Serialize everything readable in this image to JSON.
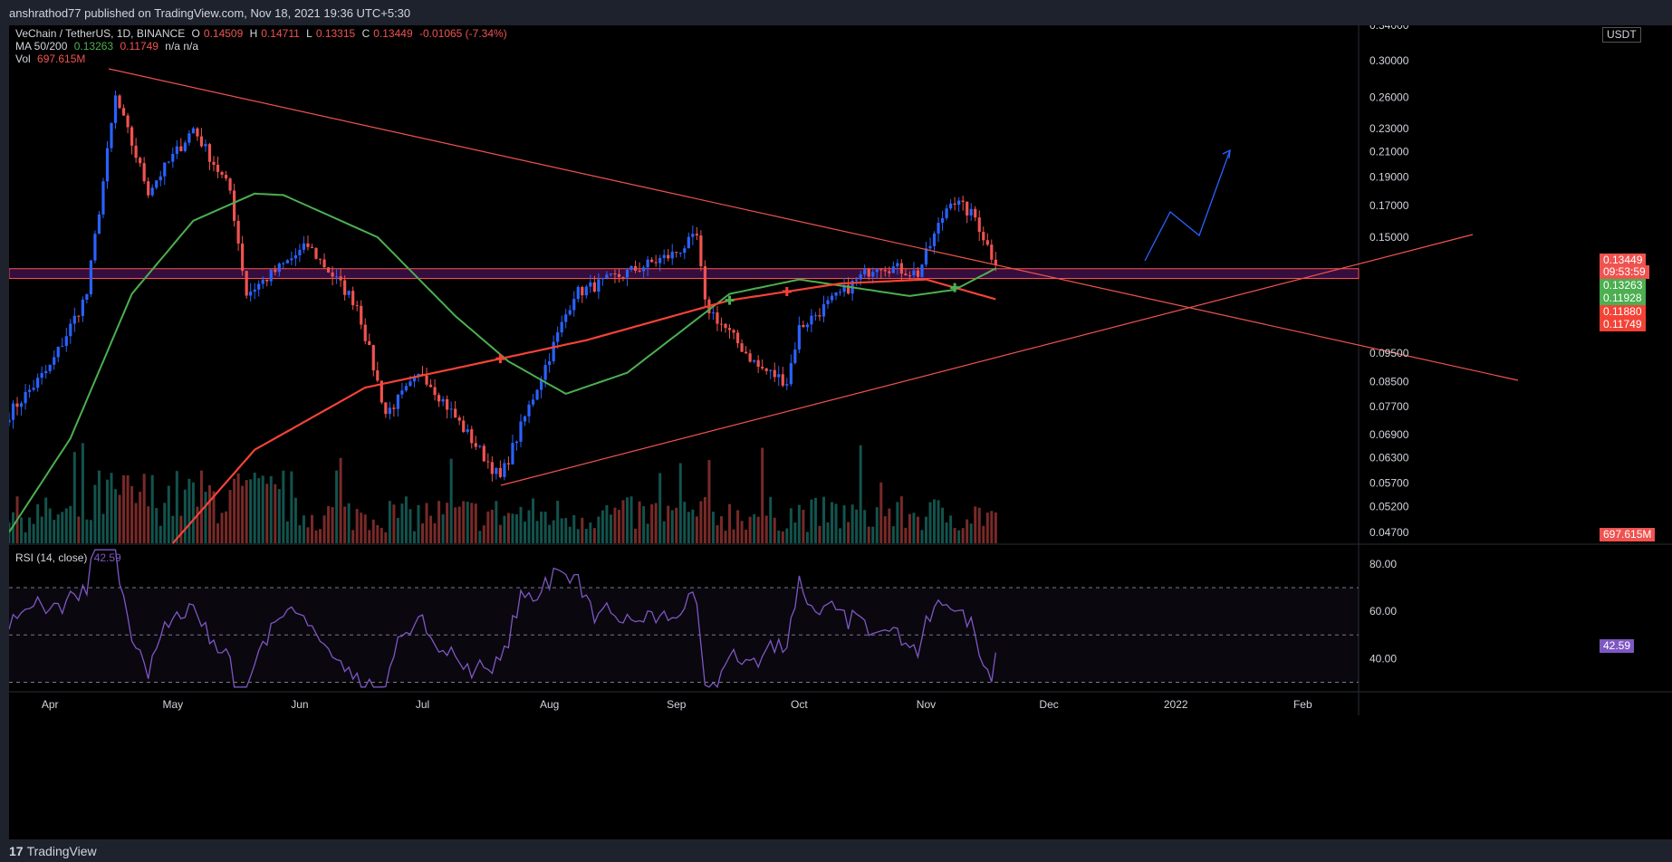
{
  "header": {
    "published": "anshrathod77 published on TradingView.com, Nov 18, 2021 19:36 UTC+5:30"
  },
  "legend": {
    "symbol": "VeChain / TetherUS, 1D, BINANCE",
    "open_label": "O",
    "open": "0.14509",
    "high_label": "H",
    "high": "0.14711",
    "low_label": "L",
    "low": "0.13315",
    "close_label": "C",
    "close": "0.13449",
    "change": "-0.01065 (-7.34%)",
    "ma_label": "MA 50/200",
    "ma50": "0.13263",
    "ma200": "0.11749",
    "ma_extra": "n/a n/a",
    "vol_label": "Vol",
    "vol": "697.615M",
    "rsi_label": "RSI (14, close)",
    "rsi": "42.59"
  },
  "price_axis": {
    "currency": "USDT",
    "ticks": [
      "0.30000",
      "0.26000",
      "0.23000",
      "0.21000",
      "0.19000",
      "0.17000",
      "0.15000",
      "0.09500",
      "0.08500",
      "0.07700",
      "0.06900",
      "0.06300",
      "0.05700",
      "0.05200"
    ],
    "top_partial": "0.34000",
    "bottom_partial": "0.04700"
  },
  "badges": {
    "last_price": "0.13449",
    "countdown": "09:53:59",
    "ma50": "0.13263",
    "ma50_b": "0.11928",
    "ma200_a": "0.11880",
    "ma200": "0.11749",
    "volume": "697.615M",
    "rsi": "42.59"
  },
  "rsi_axis": {
    "ticks": [
      "80.00",
      "60.00"
    ],
    "bottom_partial": "40.00"
  },
  "time_axis": {
    "labels": [
      "Apr",
      "May",
      "Jun",
      "Jul",
      "Aug",
      "Sep",
      "Oct",
      "Nov",
      "Dec",
      "2022",
      "Feb"
    ]
  },
  "footer": {
    "brand": "TradingView",
    "brand_mark": "17"
  },
  "colors": {
    "up": "#2962ff",
    "down": "#ef5350",
    "ma50": "#4caf50",
    "ma200": "#f44336",
    "rsi": "#7e57c2",
    "zone": "#ff5252",
    "projection": "#2962ff"
  },
  "chart_data": {
    "type": "candlestick",
    "symbol": "VeChain / TetherUS",
    "interval": "1D",
    "exchange": "BINANCE",
    "y_scale": "log",
    "ylim": [
      0.045,
      0.345
    ],
    "x_range": [
      "2021-03-22",
      "2022-02-28"
    ],
    "price_key_points": [
      {
        "date": "2021-03-22",
        "close": 0.075
      },
      {
        "date": "2021-04-01",
        "close": 0.09
      },
      {
        "date": "2021-04-10",
        "close": 0.12
      },
      {
        "date": "2021-04-17",
        "close": 0.26
      },
      {
        "date": "2021-04-25",
        "close": 0.18
      },
      {
        "date": "2021-05-06",
        "close": 0.23
      },
      {
        "date": "2021-05-15",
        "close": 0.18
      },
      {
        "date": "2021-05-19",
        "close": 0.12
      },
      {
        "date": "2021-06-03",
        "close": 0.145
      },
      {
        "date": "2021-06-15",
        "close": 0.115
      },
      {
        "date": "2021-06-22",
        "close": 0.075
      },
      {
        "date": "2021-07-01",
        "close": 0.088
      },
      {
        "date": "2021-07-20",
        "close": 0.058
      },
      {
        "date": "2021-08-07",
        "close": 0.12
      },
      {
        "date": "2021-08-31",
        "close": 0.14
      },
      {
        "date": "2021-09-06",
        "close": 0.15
      },
      {
        "date": "2021-09-08",
        "close": 0.115
      },
      {
        "date": "2021-09-21",
        "close": 0.09
      },
      {
        "date": "2021-09-28",
        "close": 0.085
      },
      {
        "date": "2021-10-01",
        "close": 0.105
      },
      {
        "date": "2021-10-20",
        "close": 0.135
      },
      {
        "date": "2021-10-30",
        "close": 0.13
      },
      {
        "date": "2021-11-07",
        "close": 0.175
      },
      {
        "date": "2021-11-13",
        "close": 0.162
      },
      {
        "date": "2021-11-18",
        "close": 0.13449
      }
    ],
    "ma50": [
      {
        "date": "2021-03-22",
        "value": 0.047
      },
      {
        "date": "2021-04-06",
        "value": 0.068
      },
      {
        "date": "2021-04-21",
        "value": 0.12
      },
      {
        "date": "2021-05-06",
        "value": 0.16
      },
      {
        "date": "2021-05-21",
        "value": 0.178
      },
      {
        "date": "2021-05-28",
        "value": 0.177
      },
      {
        "date": "2021-06-20",
        "value": 0.15
      },
      {
        "date": "2021-07-09",
        "value": 0.11
      },
      {
        "date": "2021-07-22",
        "value": 0.092
      },
      {
        "date": "2021-08-05",
        "value": 0.081
      },
      {
        "date": "2021-08-20",
        "value": 0.088
      },
      {
        "date": "2021-09-14",
        "value": 0.12
      },
      {
        "date": "2021-10-01",
        "value": 0.127
      },
      {
        "date": "2021-10-28",
        "value": 0.119
      },
      {
        "date": "2021-11-08",
        "value": 0.122
      },
      {
        "date": "2021-11-18",
        "value": 0.13263
      }
    ],
    "ma200": [
      {
        "date": "2021-05-01",
        "value": 0.045
      },
      {
        "date": "2021-05-21",
        "value": 0.065
      },
      {
        "date": "2021-06-17",
        "value": 0.083
      },
      {
        "date": "2021-07-20",
        "value": 0.093
      },
      {
        "date": "2021-08-10",
        "value": 0.1
      },
      {
        "date": "2021-09-14",
        "value": 0.117
      },
      {
        "date": "2021-10-11",
        "value": 0.125
      },
      {
        "date": "2021-11-01",
        "value": 0.127
      },
      {
        "date": "2021-11-18",
        "value": 0.11749
      }
    ],
    "support_zone": [
      0.1275,
      0.1325
    ],
    "rsi": {
      "period": 14,
      "last": 42.59,
      "levels": [
        70,
        50,
        30
      ],
      "ylim": [
        26,
        88
      ]
    }
  }
}
